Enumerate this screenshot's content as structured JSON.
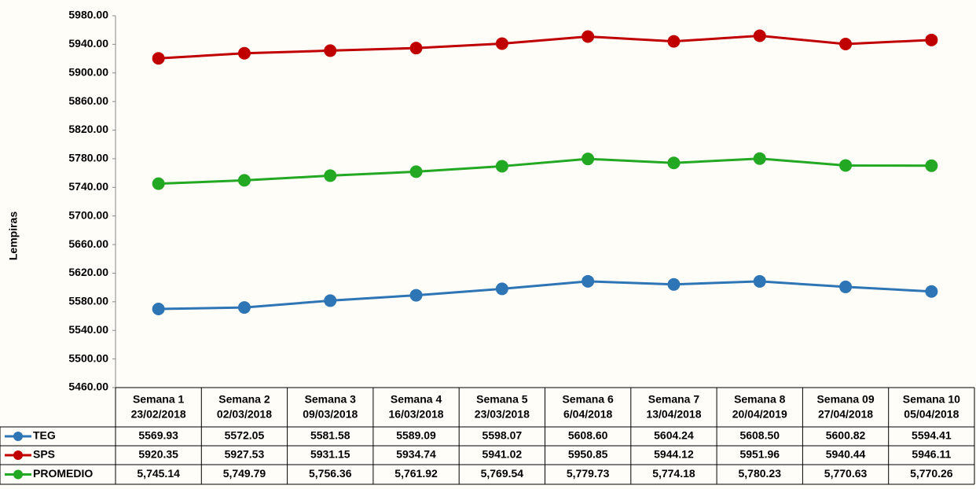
{
  "chart_data": {
    "type": "line",
    "y_label": "Lempiras",
    "categories": [
      [
        "Semana 1",
        "23/02/2018"
      ],
      [
        "Semana 2",
        "02/03/2018"
      ],
      [
        "Semana 3",
        "09/03/2018"
      ],
      [
        "Semana 4",
        "16/03/2018"
      ],
      [
        "Semana 5",
        "23/03/2018"
      ],
      [
        "Semana 6",
        "6/04/2018"
      ],
      [
        "Semana 7",
        "13/04/2018"
      ],
      [
        "Semana 8",
        "20/04/2019"
      ],
      [
        "Semana 09",
        "27/04/2018"
      ],
      [
        "Semana 10",
        "05/04/2018"
      ]
    ],
    "series": [
      {
        "name": "TEG",
        "color": "#2e75b6",
        "values": [
          5569.93,
          5572.05,
          5581.58,
          5589.09,
          5598.07,
          5608.6,
          5604.24,
          5608.5,
          5600.82,
          5594.41
        ],
        "value_labels": [
          "5569.93",
          "5572.05",
          "5581.58",
          "5589.09",
          "5598.07",
          "5608.60",
          "5604.24",
          "5608.50",
          "5600.82",
          "5594.41"
        ]
      },
      {
        "name": "SPS",
        "color": "#c00000",
        "values": [
          5920.35,
          5927.53,
          5931.15,
          5934.74,
          5941.02,
          5950.85,
          5944.12,
          5951.96,
          5940.44,
          5946.11
        ],
        "value_labels": [
          "5920.35",
          "5927.53",
          "5931.15",
          "5934.74",
          "5941.02",
          "5950.85",
          "5944.12",
          "5951.96",
          "5940.44",
          "5946.11"
        ]
      },
      {
        "name": "PROMEDIO",
        "color": "#22a822",
        "values": [
          5745.14,
          5749.79,
          5756.36,
          5761.92,
          5769.54,
          5779.73,
          5774.18,
          5780.23,
          5770.63,
          5770.26
        ],
        "value_labels": [
          "5,745.14",
          "5,749.79",
          "5,756.36",
          "5,761.92",
          "5,769.54",
          "5,779.73",
          "5,774.18",
          "5,780.23",
          "5,770.63",
          "5,770.26"
        ]
      }
    ],
    "ylim": [
      5460,
      5980
    ],
    "yticks": [
      {
        "value": 5460,
        "label": "5460.00"
      },
      {
        "value": 5500,
        "label": "5500.00"
      },
      {
        "value": 5540,
        "label": "5540.00"
      },
      {
        "value": 5580,
        "label": "5580.00"
      },
      {
        "value": 5620,
        "label": "5620.00"
      },
      {
        "value": 5660,
        "label": "5660.00"
      },
      {
        "value": 5700,
        "label": "5700.00"
      },
      {
        "value": 5740,
        "label": "5740.00"
      },
      {
        "value": 5780,
        "label": "5780.00"
      },
      {
        "value": 5820,
        "label": "5820.00"
      },
      {
        "value": 5860,
        "label": "5860.00"
      },
      {
        "value": 5900,
        "label": "5900.00"
      },
      {
        "value": 5940,
        "label": "5940.00"
      },
      {
        "value": 5980,
        "label": "5980.00"
      }
    ],
    "grid": false
  }
}
